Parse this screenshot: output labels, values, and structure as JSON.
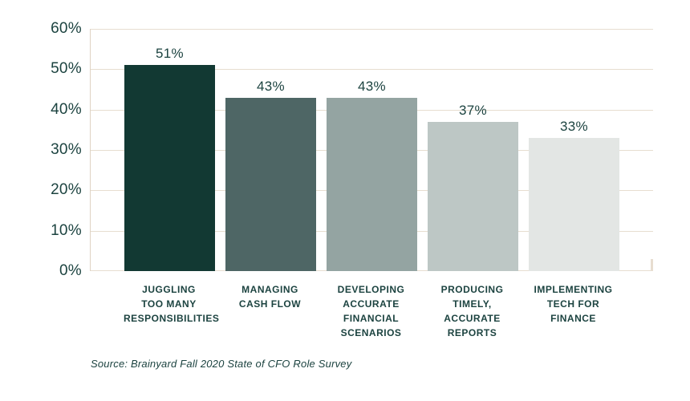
{
  "chart_data": {
    "type": "bar",
    "title": "",
    "xlabel": "",
    "ylabel": "",
    "categories": [
      [
        "JUGGLING",
        "TOO MANY",
        "RESPONSIBILITIES"
      ],
      [
        "MANAGING",
        "CASH FLOW"
      ],
      [
        "DEVELOPING",
        "ACCURATE",
        "FINANCIAL",
        "SCENARIOS"
      ],
      [
        "PRODUCING",
        "TIMELY,",
        "ACCURATE",
        "REPORTS"
      ],
      [
        "IMPLEMENTING",
        "TECH FOR",
        "FINANCE"
      ]
    ],
    "values": [
      51,
      43,
      43,
      37,
      33
    ],
    "value_labels": [
      "51%",
      "43%",
      "43%",
      "37%",
      "33%"
    ],
    "bar_colors": [
      "#123933",
      "#4E6665",
      "#94A4A2",
      "#BDC7C5",
      "#E3E6E4"
    ],
    "ylim": [
      0,
      60
    ],
    "yticks": [
      0,
      10,
      20,
      30,
      40,
      50,
      60
    ],
    "ytick_labels": [
      "0%",
      "10%",
      "20%",
      "30%",
      "40%",
      "50%",
      "60%"
    ],
    "grid": true,
    "legend_position": "none",
    "source": "Source: Brainyard Fall 2020 State of CFO Role Survey"
  },
  "colors": {
    "text": "#1C4340",
    "gridline": "#E7DDD0",
    "axis_line": "#DFD3C3",
    "background": "#FFFFFF"
  }
}
